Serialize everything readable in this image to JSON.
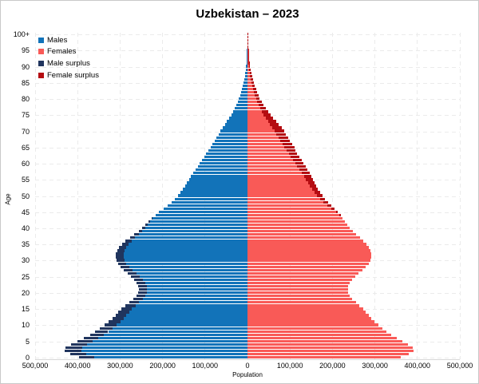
{
  "title": "Uzbekistan – 2023",
  "legend": [
    {
      "label": "Males",
      "color": "#1273b9"
    },
    {
      "label": "Females",
      "color": "#f95a57"
    },
    {
      "label": "Male surplus",
      "color": "#20355e"
    },
    {
      "label": "Female surplus",
      "color": "#b50d12"
    }
  ],
  "axes": {
    "x_label": "Population",
    "y_label": "Age",
    "x_ticks": [
      "500,000",
      "400,000",
      "300,000",
      "200,000",
      "100,000",
      "0",
      "100,000",
      "200,000",
      "300,000",
      "400,000",
      "500,000"
    ],
    "y_ticks": [
      "100+",
      "95",
      "90",
      "85",
      "80",
      "75",
      "70",
      "65",
      "60",
      "55",
      "50",
      "45",
      "40",
      "35",
      "30",
      "25",
      "20",
      "15",
      "10",
      "5",
      "0"
    ]
  },
  "colors": {
    "males": "#1273b9",
    "females": "#f95a57",
    "male_surplus": "#20355e",
    "female_surplus": "#b50d12",
    "grid": "#ebebeb",
    "axis_line": "#d8d8d8"
  },
  "chart_data": {
    "type": "bar",
    "subtype": "population-pyramid",
    "title": "Uzbekistan – 2023",
    "xlabel": "Population",
    "ylabel": "Age",
    "xlim": [
      -500000,
      500000
    ],
    "x_tick_interval": 100000,
    "age_min": 0,
    "age_max_label": "100+",
    "grid": "dashed",
    "legend_position": "top-left",
    "ages": [
      0,
      1,
      2,
      3,
      4,
      5,
      6,
      7,
      8,
      9,
      10,
      11,
      12,
      13,
      14,
      15,
      16,
      17,
      18,
      19,
      20,
      21,
      22,
      23,
      24,
      25,
      26,
      27,
      28,
      29,
      30,
      31,
      32,
      33,
      34,
      35,
      36,
      37,
      38,
      39,
      40,
      41,
      42,
      43,
      44,
      45,
      46,
      47,
      48,
      49,
      50,
      51,
      52,
      53,
      54,
      55,
      56,
      57,
      58,
      59,
      60,
      61,
      62,
      63,
      64,
      65,
      66,
      67,
      68,
      69,
      70,
      71,
      72,
      73,
      74,
      75,
      76,
      77,
      78,
      79,
      80,
      81,
      82,
      83,
      84,
      85,
      86,
      87,
      88,
      89,
      90,
      91,
      92,
      93,
      94,
      95,
      96,
      97,
      98,
      99,
      100
    ],
    "series": [
      {
        "name": "Males",
        "values": [
          397000,
          417000,
          430000,
          429000,
          415000,
          400000,
          386000,
          371000,
          359000,
          348000,
          337000,
          327000,
          318000,
          311000,
          304000,
          297000,
          288000,
          278000,
          269000,
          262000,
          258000,
          256000,
          257000,
          261000,
          267000,
          274000,
          282000,
          291000,
          299000,
          305000,
          309000,
          311000,
          310000,
          307000,
          302000,
          295000,
          287000,
          277000,
          266000,
          256000,
          248000,
          241000,
          233000,
          225000,
          217000,
          208000,
          198000,
          188000,
          179000,
          171000,
          164000,
          158000,
          152000,
          147000,
          143000,
          138000,
          133000,
          128000,
          123000,
          117000,
          112000,
          107000,
          102000,
          97000,
          92000,
          87000,
          82000,
          78000,
          73000,
          68000,
          63000,
          58000,
          53000,
          48000,
          43000,
          38000,
          34000,
          30000,
          26000,
          23000,
          20000,
          17000,
          15000,
          13000,
          11000,
          9500,
          8000,
          6500,
          5500,
          4500,
          3500,
          2800,
          2200,
          1700,
          1300,
          1000,
          750,
          550,
          400,
          280,
          600
        ]
      },
      {
        "name": "Females",
        "values": [
          360000,
          380000,
          391000,
          390000,
          378000,
          365000,
          352000,
          339000,
          328000,
          318000,
          308000,
          299000,
          291000,
          285000,
          279000,
          272000,
          264000,
          255000,
          247000,
          241000,
          237000,
          236000,
          237000,
          241000,
          247000,
          254000,
          262000,
          271000,
          279000,
          285000,
          289000,
          291000,
          291000,
          289000,
          285000,
          280000,
          273000,
          265000,
          256000,
          248000,
          241000,
          235000,
          229000,
          224000,
          219000,
          213000,
          205000,
          197000,
          189000,
          182000,
          176000,
          171000,
          166000,
          162000,
          158000,
          154000,
          150000,
          146000,
          141000,
          137000,
          132000,
          127000,
          122000,
          117000,
          112000,
          110000,
          105000,
          100000,
          95000,
          90000,
          86000,
          80000,
          74000,
          67000,
          60000,
          54000,
          48000,
          43000,
          38000,
          34000,
          29000,
          26000,
          23000,
          20000,
          17500,
          15000,
          13000,
          11000,
          9200,
          7700,
          6300,
          5100,
          4100,
          3200,
          2500,
          1900,
          1500,
          1100,
          850,
          650,
          1400
        ]
      }
    ],
    "surplus_encoding": "tip of the longer bar is drawn in the surplus color (Male surplus / Female surplus)"
  }
}
